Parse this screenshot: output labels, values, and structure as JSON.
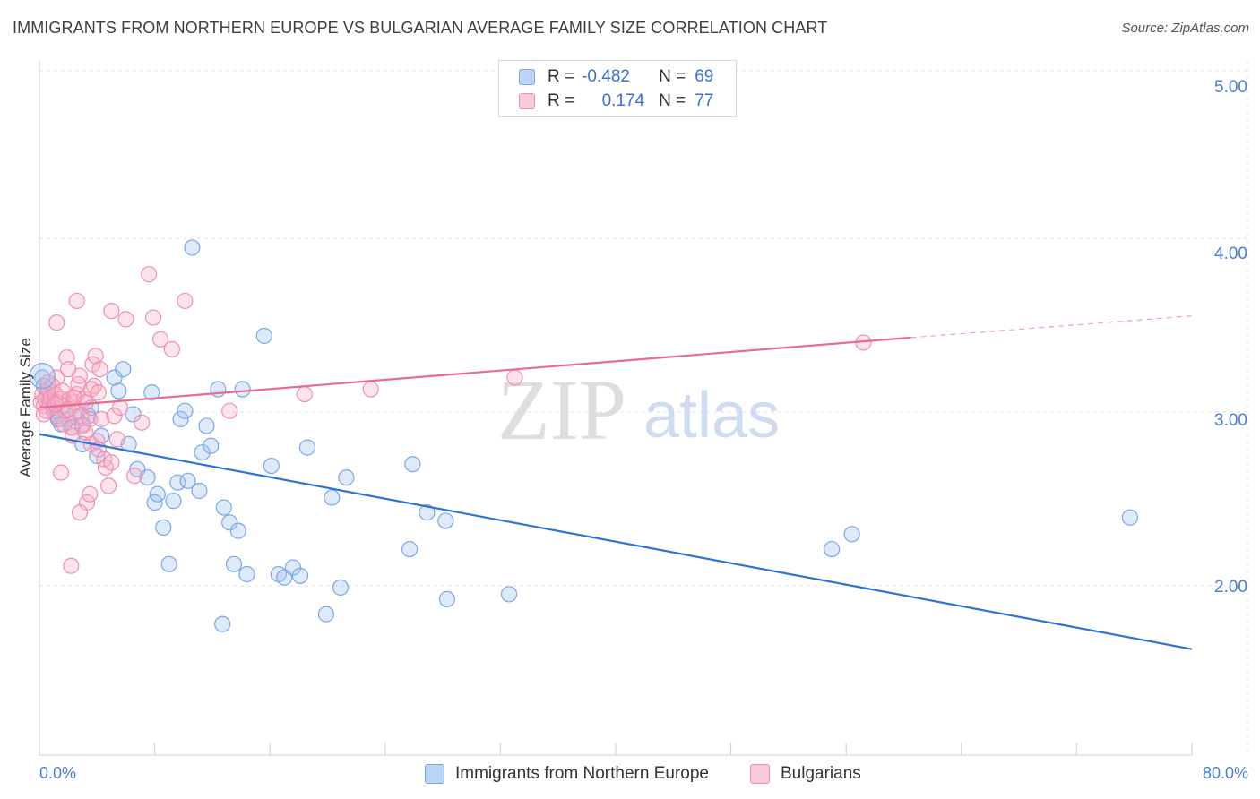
{
  "title": "IMMIGRANTS FROM NORTHERN EUROPE VS BULGARIAN AVERAGE FAMILY SIZE CORRELATION CHART",
  "source": "Source: ZipAtlas.com",
  "watermark": {
    "zip": "ZIP",
    "atlas": "atlas"
  },
  "legend": {
    "rows": [
      {
        "r_label": "R =",
        "r_value": "-0.482",
        "n_label": "N =",
        "n_value": "69",
        "color": "#4a90e2"
      },
      {
        "r_label": "R =",
        "r_value": "0.174",
        "n_label": "N =",
        "n_value": "77",
        "color": "#ef6f98"
      }
    ]
  },
  "bottom_legend": {
    "blue": "Immigrants from Northern Europe",
    "pink": "Bulgarians"
  },
  "chart_data": {
    "type": "scatter",
    "title": "IMMIGRANTS FROM NORTHERN EUROPE VS BULGARIAN AVERAGE FAMILY SIZE CORRELATION CHART",
    "xlabel": "",
    "ylabel": "Average Family Size",
    "xlim": [
      0,
      80
    ],
    "ylim": [
      1.0,
      5.2
    ],
    "x_tick_labels": [
      "0.0%",
      "80.0%"
    ],
    "y_ticks": [
      2.0,
      3.0,
      4.0,
      5.0
    ],
    "y_tick_labels": [
      "2.00",
      "3.00",
      "4.00",
      "5.00"
    ],
    "grid": true,
    "series": [
      {
        "name": "Immigrants from Northern Europe",
        "color": "#4a90e2",
        "r": -0.482,
        "n": 69,
        "trend": {
          "x0": 0,
          "y0": 2.91,
          "x1": 80,
          "y1": 1.62
        },
        "points": [
          [
            0.2,
            3.25
          ],
          [
            0.3,
            3.2
          ],
          [
            0.5,
            3.15
          ],
          [
            0.7,
            3.12
          ],
          [
            0.9,
            3.1
          ],
          [
            1.0,
            3.05
          ],
          [
            1.2,
            3.02
          ],
          [
            1.3,
            3.0
          ],
          [
            1.5,
            2.97
          ],
          [
            1.7,
            3.08
          ],
          [
            2.0,
            3.0
          ],
          [
            2.3,
            2.95
          ],
          [
            2.6,
            3.01
          ],
          [
            3.0,
            2.85
          ],
          [
            3.4,
            3.02
          ],
          [
            3.6,
            3.07
          ],
          [
            4.0,
            2.78
          ],
          [
            4.3,
            2.9
          ],
          [
            5.2,
            3.25
          ],
          [
            5.5,
            3.17
          ],
          [
            5.8,
            3.3
          ],
          [
            6.2,
            2.85
          ],
          [
            6.5,
            3.03
          ],
          [
            6.8,
            2.7
          ],
          [
            7.5,
            2.65
          ],
          [
            7.8,
            3.16
          ],
          [
            8.0,
            2.5
          ],
          [
            8.2,
            2.55
          ],
          [
            8.6,
            2.35
          ],
          [
            9.0,
            2.13
          ],
          [
            9.3,
            2.51
          ],
          [
            9.6,
            2.62
          ],
          [
            9.8,
            3.0
          ],
          [
            10.1,
            3.05
          ],
          [
            10.3,
            2.63
          ],
          [
            10.6,
            4.03
          ],
          [
            11.1,
            2.57
          ],
          [
            11.3,
            2.8
          ],
          [
            11.6,
            2.96
          ],
          [
            11.9,
            2.84
          ],
          [
            12.4,
            3.18
          ],
          [
            12.8,
            2.47
          ],
          [
            13.2,
            2.38
          ],
          [
            13.5,
            2.13
          ],
          [
            13.8,
            2.33
          ],
          [
            14.1,
            3.18
          ],
          [
            14.4,
            2.07
          ],
          [
            15.6,
            3.5
          ],
          [
            16.1,
            2.72
          ],
          [
            16.6,
            2.07
          ],
          [
            17.0,
            2.05
          ],
          [
            17.6,
            2.11
          ],
          [
            18.1,
            2.06
          ],
          [
            18.6,
            2.83
          ],
          [
            19.9,
            1.83
          ],
          [
            20.3,
            2.53
          ],
          [
            20.9,
            1.99
          ],
          [
            21.3,
            2.65
          ],
          [
            12.7,
            1.77
          ],
          [
            25.9,
            2.73
          ],
          [
            25.7,
            2.22
          ],
          [
            26.9,
            2.44
          ],
          [
            28.2,
            2.39
          ],
          [
            28.3,
            1.92
          ],
          [
            32.6,
            1.95
          ],
          [
            55.0,
            2.22
          ],
          [
            56.4,
            2.31
          ],
          [
            75.7,
            2.41
          ],
          [
            3.0,
            2.97
          ]
        ]
      },
      {
        "name": "Bulgarians",
        "color": "#ef6f98",
        "r": 0.174,
        "n": 77,
        "trend": {
          "x0": 0,
          "y0": 3.07,
          "x1": 60.5,
          "y1": 3.49
        },
        "trend_dashed": {
          "x0": 60.5,
          "y0": 3.49,
          "x1": 80,
          "y1": 3.62
        },
        "points": [
          [
            0.1,
            3.1
          ],
          [
            0.2,
            3.15
          ],
          [
            0.3,
            3.08
          ],
          [
            0.4,
            3.12
          ],
          [
            0.5,
            3.05
          ],
          [
            0.6,
            3.18
          ],
          [
            0.7,
            3.1
          ],
          [
            0.8,
            3.13
          ],
          [
            0.9,
            3.2
          ],
          [
            1.0,
            3.07
          ],
          [
            1.1,
            3.15
          ],
          [
            1.2,
            3.25
          ],
          [
            1.3,
            3.1
          ],
          [
            1.4,
            3.0
          ],
          [
            1.5,
            3.12
          ],
          [
            1.6,
            3.17
          ],
          [
            1.7,
            2.97
          ],
          [
            1.8,
            3.05
          ],
          [
            1.9,
            3.37
          ],
          [
            2.0,
            3.3
          ],
          [
            2.1,
            3.12
          ],
          [
            2.2,
            2.95
          ],
          [
            2.3,
            2.9
          ],
          [
            2.4,
            3.1
          ],
          [
            2.5,
            3.05
          ],
          [
            2.6,
            3.15
          ],
          [
            2.7,
            3.21
          ],
          [
            2.8,
            3.26
          ],
          [
            2.9,
            3.02
          ],
          [
            3.0,
            2.96
          ],
          [
            3.1,
            3.12
          ],
          [
            3.2,
            3.1
          ],
          [
            3.3,
            2.5
          ],
          [
            3.5,
            3.0
          ],
          [
            3.6,
            2.85
          ],
          [
            3.7,
            3.33
          ],
          [
            3.8,
            3.2
          ],
          [
            3.9,
            3.38
          ],
          [
            4.0,
            2.87
          ],
          [
            4.1,
            2.82
          ],
          [
            4.2,
            3.3
          ],
          [
            4.3,
            3.0
          ],
          [
            4.5,
            2.76
          ],
          [
            4.6,
            2.71
          ],
          [
            4.8,
            2.6
          ],
          [
            5.0,
            2.74
          ],
          [
            5.2,
            3.02
          ],
          [
            5.4,
            2.88
          ],
          [
            5.0,
            3.65
          ],
          [
            2.6,
            3.71
          ],
          [
            3.6,
            3.18
          ],
          [
            2.2,
            2.12
          ],
          [
            1.5,
            2.68
          ],
          [
            2.8,
            2.44
          ],
          [
            3.5,
            2.55
          ],
          [
            1.2,
            3.58
          ],
          [
            6.0,
            3.6
          ],
          [
            5.6,
            3.07
          ],
          [
            6.6,
            2.66
          ],
          [
            7.1,
            2.98
          ],
          [
            7.6,
            3.87
          ],
          [
            7.9,
            3.61
          ],
          [
            8.4,
            3.48
          ],
          [
            9.2,
            3.42
          ],
          [
            10.1,
            3.71
          ],
          [
            13.2,
            3.05
          ],
          [
            18.4,
            3.15
          ],
          [
            23.0,
            3.18
          ],
          [
            33.0,
            3.25
          ],
          [
            57.2,
            3.46
          ],
          [
            0.3,
            3.03
          ],
          [
            0.6,
            3.22
          ],
          [
            1.1,
            3.09
          ],
          [
            2.0,
            3.06
          ],
          [
            2.4,
            3.13
          ],
          [
            3.2,
            2.92
          ],
          [
            4.1,
            3.16
          ]
        ]
      }
    ]
  }
}
